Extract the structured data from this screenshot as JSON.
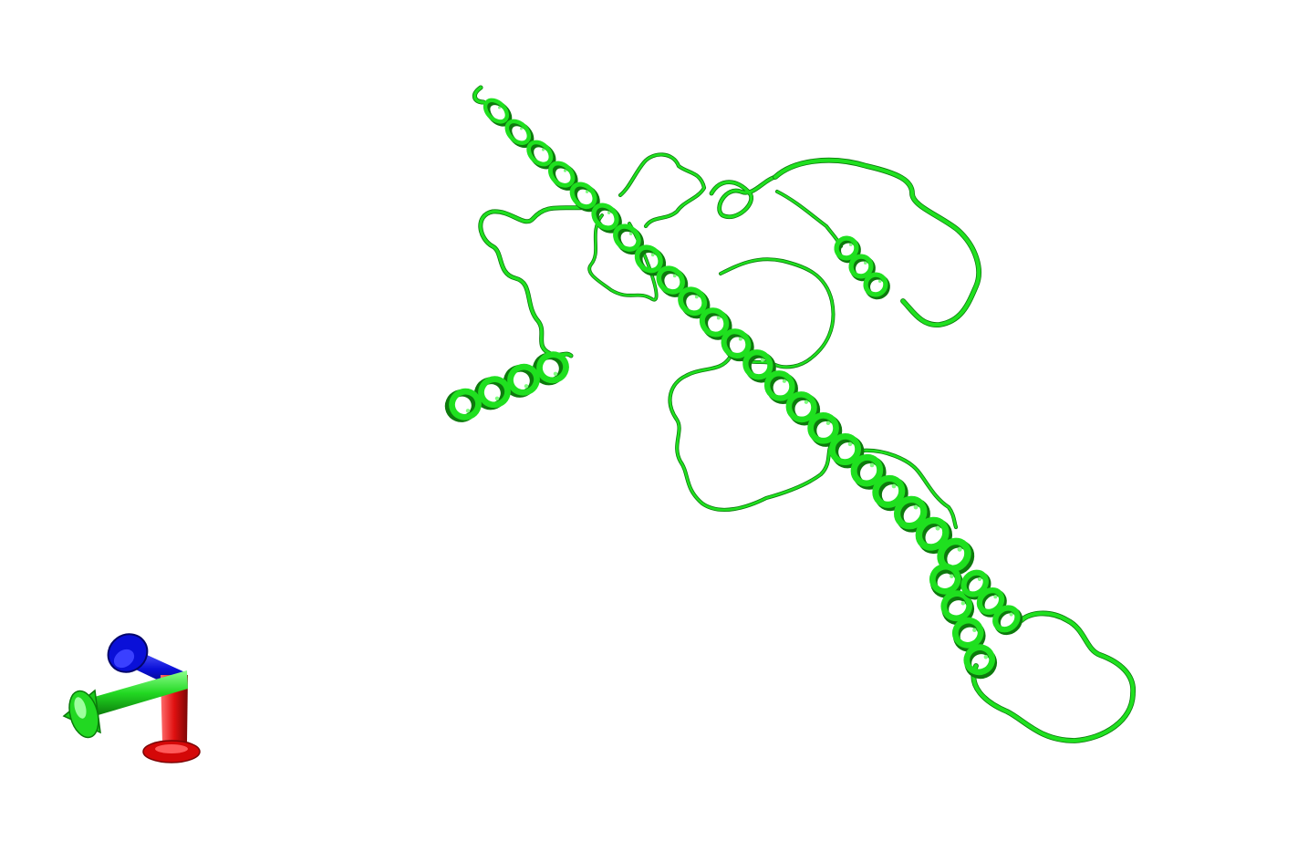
{
  "scene": {
    "background_color": "#ffffff",
    "representation": "cartoon",
    "structure_color": "#1fe01f",
    "structure_shadow": "#0d7a0d",
    "structure_highlight": "#7dff7d"
  },
  "axes": {
    "x": {
      "color": "#e01010",
      "icon": "axis-arrow-x"
    },
    "y": {
      "color": "#10c010",
      "icon": "axis-arrow-y"
    },
    "z": {
      "color": "#0a10d8",
      "icon": "axis-arrow-z"
    }
  }
}
